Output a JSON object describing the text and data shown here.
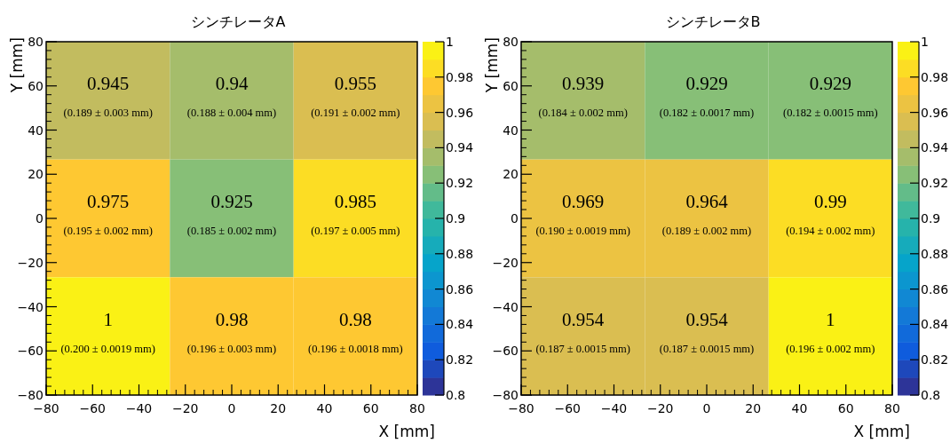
{
  "chart_data": [
    {
      "type": "heatmap",
      "title": "シンチレータA",
      "xlabel": "X [mm]",
      "ylabel": "Y [mm]",
      "cells": [
        [
          0.945,
          0.94,
          0.955
        ],
        [
          0.975,
          0.925,
          0.985
        ],
        [
          1,
          0.98,
          0.98
        ]
      ],
      "cell_labels": [
        [
          "0.945\n(0.189 ± 0.003 mm)",
          "0.94\n(0.188 ± 0.004 mm)",
          "0.955\n(0.191 ± 0.002 mm)"
        ],
        [
          "0.975\n(0.195 ± 0.002 mm)",
          "0.925\n(0.185 ± 0.002 mm)",
          "0.985\n(0.197 ± 0.005 mm)"
        ],
        [
          "1\n(0.200 ± 0.0019 mm)",
          "0.98\n(0.196 ± 0.003 mm)",
          "0.98\n(0.196 ± 0.0018 mm)"
        ]
      ],
      "xlim": [
        -80,
        80
      ],
      "ylim": [
        -80,
        80
      ],
      "xticks": [
        {
          "value": -80,
          "label": "−80"
        },
        {
          "value": -60,
          "label": "−60"
        },
        {
          "value": -40,
          "label": "−40"
        },
        {
          "value": -20,
          "label": "−20"
        },
        0,
        20,
        40,
        60,
        80
      ],
      "yticks": [
        {
          "value": -80,
          "label": "−80"
        },
        {
          "value": -60,
          "label": "−60"
        },
        {
          "value": -40,
          "label": "−40"
        },
        {
          "value": -20,
          "label": "−20"
        },
        0,
        20,
        40,
        60,
        80
      ],
      "clim": [
        0.8,
        1
      ],
      "cticks": [
        0.8,
        0.82,
        0.84,
        0.86,
        0.88,
        0.9,
        0.92,
        0.94,
        0.96,
        0.98,
        1
      ]
    },
    {
      "type": "heatmap",
      "title": "シンチレータB",
      "xlabel": "X [mm]",
      "ylabel": "Y [mm]",
      "cells": [
        [
          0.939,
          0.929,
          0.929
        ],
        [
          0.969,
          0.964,
          0.99
        ],
        [
          0.954,
          0.954,
          1
        ]
      ],
      "cell_labels": [
        [
          "0.939\n(0.184 ± 0.002 mm)",
          "0.929\n(0.182 ± 0.0017 mm)",
          "0.929\n(0.182 ± 0.0015 mm)"
        ],
        [
          "0.969\n(0.190 ± 0.0019 mm)",
          "0.964\n(0.189 ± 0.002 mm)",
          "0.99\n(0.194 ± 0.002 mm)"
        ],
        [
          "0.954\n(0.187 ± 0.0015 mm)",
          "0.954\n(0.187 ± 0.0015 mm)",
          "1\n(0.196 ± 0.002 mm)"
        ]
      ],
      "xlim": [
        -80,
        80
      ],
      "ylim": [
        -80,
        80
      ],
      "xticks": [
        {
          "value": -80,
          "label": "−80"
        },
        {
          "value": -60,
          "label": "−60"
        },
        {
          "value": -40,
          "label": "−40"
        },
        {
          "value": -20,
          "label": "−20"
        },
        0,
        20,
        40,
        60,
        80
      ],
      "yticks": [
        {
          "value": -80,
          "label": "−80"
        },
        {
          "value": -60,
          "label": "−60"
        },
        {
          "value": -40,
          "label": "−40"
        },
        {
          "value": -20,
          "label": "−20"
        },
        0,
        20,
        40,
        60,
        80
      ],
      "clim": [
        0.8,
        1
      ],
      "cticks": [
        0.8,
        0.82,
        0.84,
        0.86,
        0.88,
        0.9,
        0.92,
        0.94,
        0.96,
        0.98,
        1
      ]
    }
  ]
}
